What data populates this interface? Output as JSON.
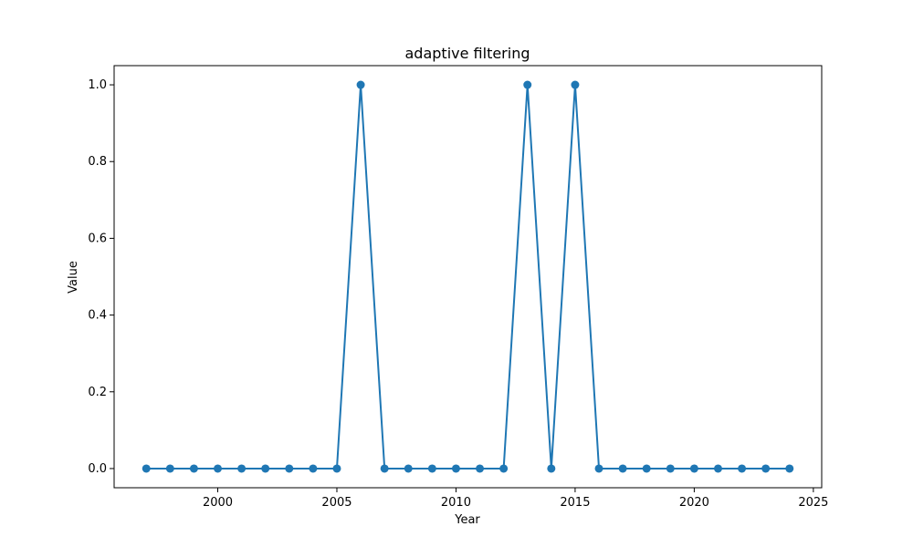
{
  "chart_data": {
    "type": "line",
    "title": "adaptive filtering",
    "xlabel": "Year",
    "ylabel": "Value",
    "xlim": [
      1995.65,
      2025.35
    ],
    "ylim": [
      -0.05,
      1.05
    ],
    "x_ticks": [
      2000,
      2005,
      2010,
      2015,
      2020,
      2025
    ],
    "y_ticks": [
      0.0,
      0.2,
      0.4,
      0.6,
      0.8,
      1.0
    ],
    "x_tick_labels": [
      "2000",
      "2005",
      "2010",
      "2015",
      "2020",
      "2025"
    ],
    "y_tick_labels": [
      "0.0",
      "0.2",
      "0.4",
      "0.6",
      "0.8",
      "1.0"
    ],
    "grid": false,
    "line_color": "#1f77b4",
    "marker": "circle",
    "series": [
      {
        "x": [
          1997,
          1998,
          1999,
          2000,
          2001,
          2002,
          2003,
          2004,
          2005,
          2006,
          2007,
          2008,
          2009,
          2010,
          2011,
          2012,
          2013,
          2014,
          2015,
          2016,
          2017,
          2018,
          2019,
          2020,
          2021,
          2022,
          2023,
          2024
        ],
        "values": [
          0,
          0,
          0,
          0,
          0,
          0,
          0,
          0,
          0,
          1,
          0,
          0,
          0,
          0,
          0,
          0,
          1,
          0,
          1,
          0,
          0,
          0,
          0,
          0,
          0,
          0,
          0,
          0
        ]
      }
    ]
  }
}
